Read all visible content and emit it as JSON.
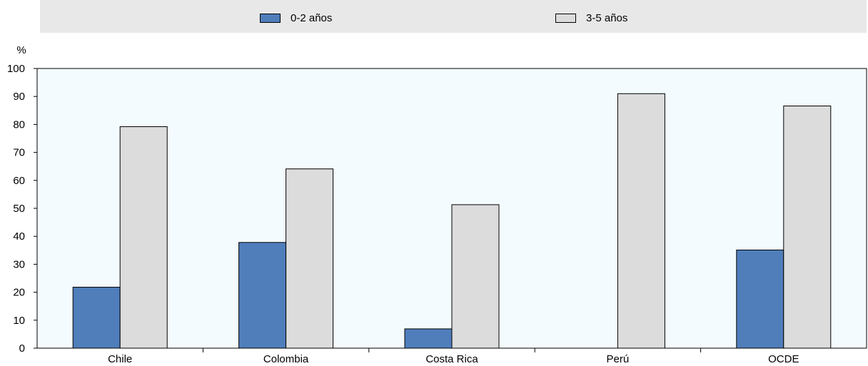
{
  "chart_data": {
    "type": "bar",
    "categories": [
      "Chile",
      "Colombia",
      "Costa Rica",
      "Perú",
      "OCDE"
    ],
    "series": [
      {
        "name": "0-2 años",
        "color": "#4f7ebb",
        "values": [
          21.8,
          37.8,
          6.9,
          null,
          35.1
        ]
      },
      {
        "name": "3-5 años",
        "color": "#dcdcdc",
        "values": [
          79.2,
          64.1,
          51.3,
          91.0,
          86.6
        ]
      }
    ],
    "ylabel": "%",
    "ylim": [
      0,
      100
    ],
    "yticks": [
      0,
      10,
      20,
      30,
      40,
      50,
      60,
      70,
      80,
      90,
      100
    ],
    "legend_position": "top",
    "grid": false
  }
}
